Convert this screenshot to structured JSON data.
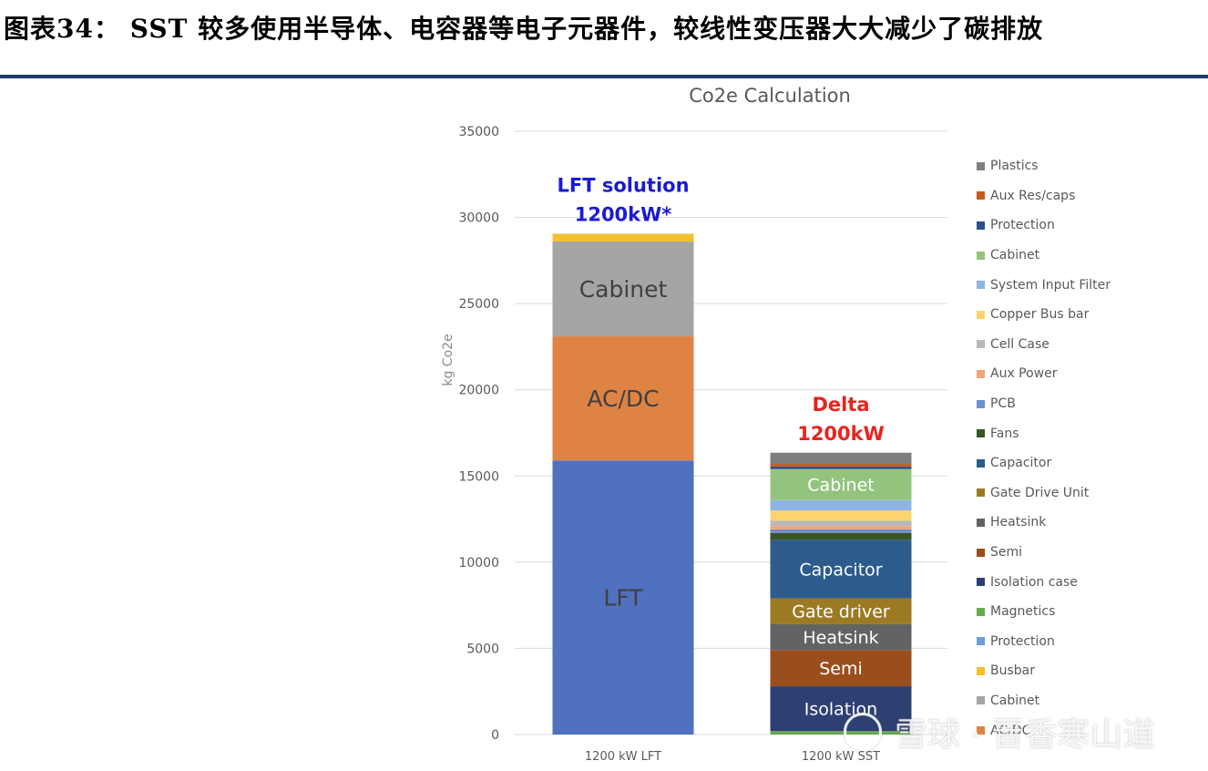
{
  "heading": "图表34：  SST 较多使用半导体、电容器等电子元器件，较线性变压器大大减少了碳排放",
  "colors": {
    "rule": "#1f3a6d"
  },
  "chart_data": {
    "type": "bar",
    "stacked": true,
    "title": "Co2e Calculation",
    "ylabel": "kg Co2e",
    "xlabel": "",
    "ylim": [
      0,
      35000
    ],
    "yticks": [
      0,
      5000,
      10000,
      15000,
      20000,
      25000,
      30000,
      35000
    ],
    "grid": true,
    "legend_position": "right",
    "categories": [
      "1200 kW LFT",
      "1200 kW SST"
    ],
    "bar_annotations": [
      {
        "lines": [
          "LFT solution",
          "1200kW*"
        ],
        "color": "#1a1ad6"
      },
      {
        "lines": [
          "Delta",
          "1200kW"
        ],
        "color": "#e8231f"
      }
    ],
    "stacks": [
      [
        {
          "name": "LFT",
          "value": 15900,
          "color": "#4f71be",
          "label": "LFT",
          "label_color": "#404040"
        },
        {
          "name": "AC/DC",
          "value": 7200,
          "color": "#de8344",
          "label": "AC/DC",
          "label_color": "#404040"
        },
        {
          "name": "Cabinet",
          "value": 5500,
          "color": "#a5a5a5",
          "label": "Cabinet",
          "label_color": "#404040"
        },
        {
          "name": "Busbar",
          "value": 450,
          "color": "#f4c02f"
        }
      ],
      [
        {
          "name": "Magnetics",
          "value": 200,
          "color": "#6aa84f"
        },
        {
          "name": "Isolation case",
          "value": 2600,
          "color": "#2e3f73",
          "label": "Isolation",
          "label_color": "#ffffff"
        },
        {
          "name": "Semi",
          "value": 2100,
          "color": "#9a4e1c",
          "label": "Semi",
          "label_color": "#ffffff"
        },
        {
          "name": "Heatsink",
          "value": 1500,
          "color": "#636363",
          "label": "Heatsink",
          "label_color": "#ffffff"
        },
        {
          "name": "Gate Drive Unit",
          "value": 1500,
          "color": "#9c7a23",
          "label": "Gate driver",
          "label_color": "#ffffff"
        },
        {
          "name": "Capacitor",
          "value": 3400,
          "color": "#2d5b8c",
          "label": "Capacitor",
          "label_color": "#ffffff"
        },
        {
          "name": "Fans",
          "value": 400,
          "color": "#375623"
        },
        {
          "name": "PCB",
          "value": 200,
          "color": "#6f8fd0"
        },
        {
          "name": "Aux Power",
          "value": 200,
          "color": "#f0a67a"
        },
        {
          "name": "Cell Case",
          "value": 300,
          "color": "#b8b8b8"
        },
        {
          "name": "Copper Bus bar",
          "value": 600,
          "color": "#fbd46d"
        },
        {
          "name": "System Input Filter",
          "value": 600,
          "color": "#8fb4e3"
        },
        {
          "name": "Cabinet",
          "value": 1800,
          "color": "#93c47d",
          "label": "Cabinet",
          "label_color": "#ffffff"
        },
        {
          "name": "Protection",
          "value": 150,
          "color": "#2f4f8f"
        },
        {
          "name": "Aux Res/caps",
          "value": 150,
          "color": "#c65a1e"
        },
        {
          "name": "Plastics",
          "value": 650,
          "color": "#7f7f7f"
        }
      ]
    ],
    "legend": [
      {
        "name": "Plastics",
        "color": "#7f7f7f"
      },
      {
        "name": "Aux Res/caps",
        "color": "#c65a1e"
      },
      {
        "name": "Protection",
        "color": "#2f4f8f"
      },
      {
        "name": "Cabinet",
        "color": "#93c47d"
      },
      {
        "name": "System Input Filter",
        "color": "#8fb4e3"
      },
      {
        "name": "Copper Bus bar",
        "color": "#fbd46d"
      },
      {
        "name": "Cell Case",
        "color": "#b8b8b8"
      },
      {
        "name": "Aux Power",
        "color": "#f0a67a"
      },
      {
        "name": "PCB",
        "color": "#6f8fd0"
      },
      {
        "name": "Fans",
        "color": "#375623"
      },
      {
        "name": "Capacitor",
        "color": "#2d5b8c"
      },
      {
        "name": "Gate Drive Unit",
        "color": "#9c7a23"
      },
      {
        "name": "Heatsink",
        "color": "#636363"
      },
      {
        "name": "Semi",
        "color": "#9a4e1c"
      },
      {
        "name": "Isolation case",
        "color": "#2e3f73"
      },
      {
        "name": "Magnetics",
        "color": "#6aa84f"
      },
      {
        "name": "Protection",
        "color": "#6f9fd8"
      },
      {
        "name": "Busbar",
        "color": "#f4c02f"
      },
      {
        "name": "Cabinet",
        "color": "#a5a5a5"
      },
      {
        "name": "AC/DC",
        "color": "#de8344"
      }
    ]
  },
  "watermark": "雪球 · 晋香寒山道"
}
